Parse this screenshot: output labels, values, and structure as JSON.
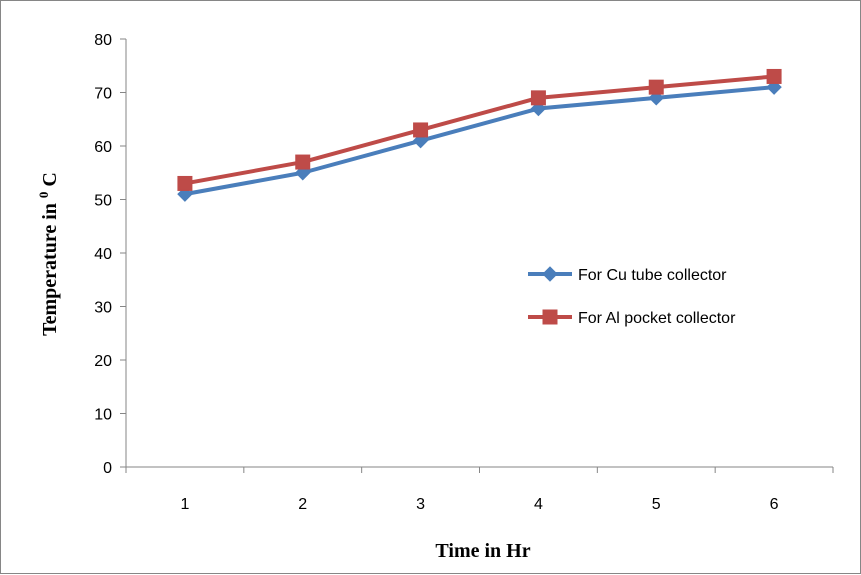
{
  "chart_data": {
    "type": "line",
    "title": "",
    "xlabel": "Time in Hr",
    "ylabel_main": "Temperature in ",
    "ylabel_sup": "0",
    "ylabel_unit": " C",
    "categories": [
      "1",
      "2",
      "3",
      "4",
      "5",
      "6"
    ],
    "ylim": [
      0,
      80
    ],
    "yticks": [
      0,
      10,
      20,
      30,
      40,
      50,
      60,
      70,
      80
    ],
    "grid": false,
    "legend_position": "right",
    "series": [
      {
        "name": "For Cu tube collector",
        "values": [
          51,
          55,
          61,
          67,
          69,
          71
        ],
        "color": "#4a7ebb",
        "marker": "diamond"
      },
      {
        "name": "For Al pocket collector",
        "values": [
          53,
          57,
          63,
          69,
          71,
          73
        ],
        "color": "#be4b48",
        "marker": "square"
      }
    ]
  }
}
